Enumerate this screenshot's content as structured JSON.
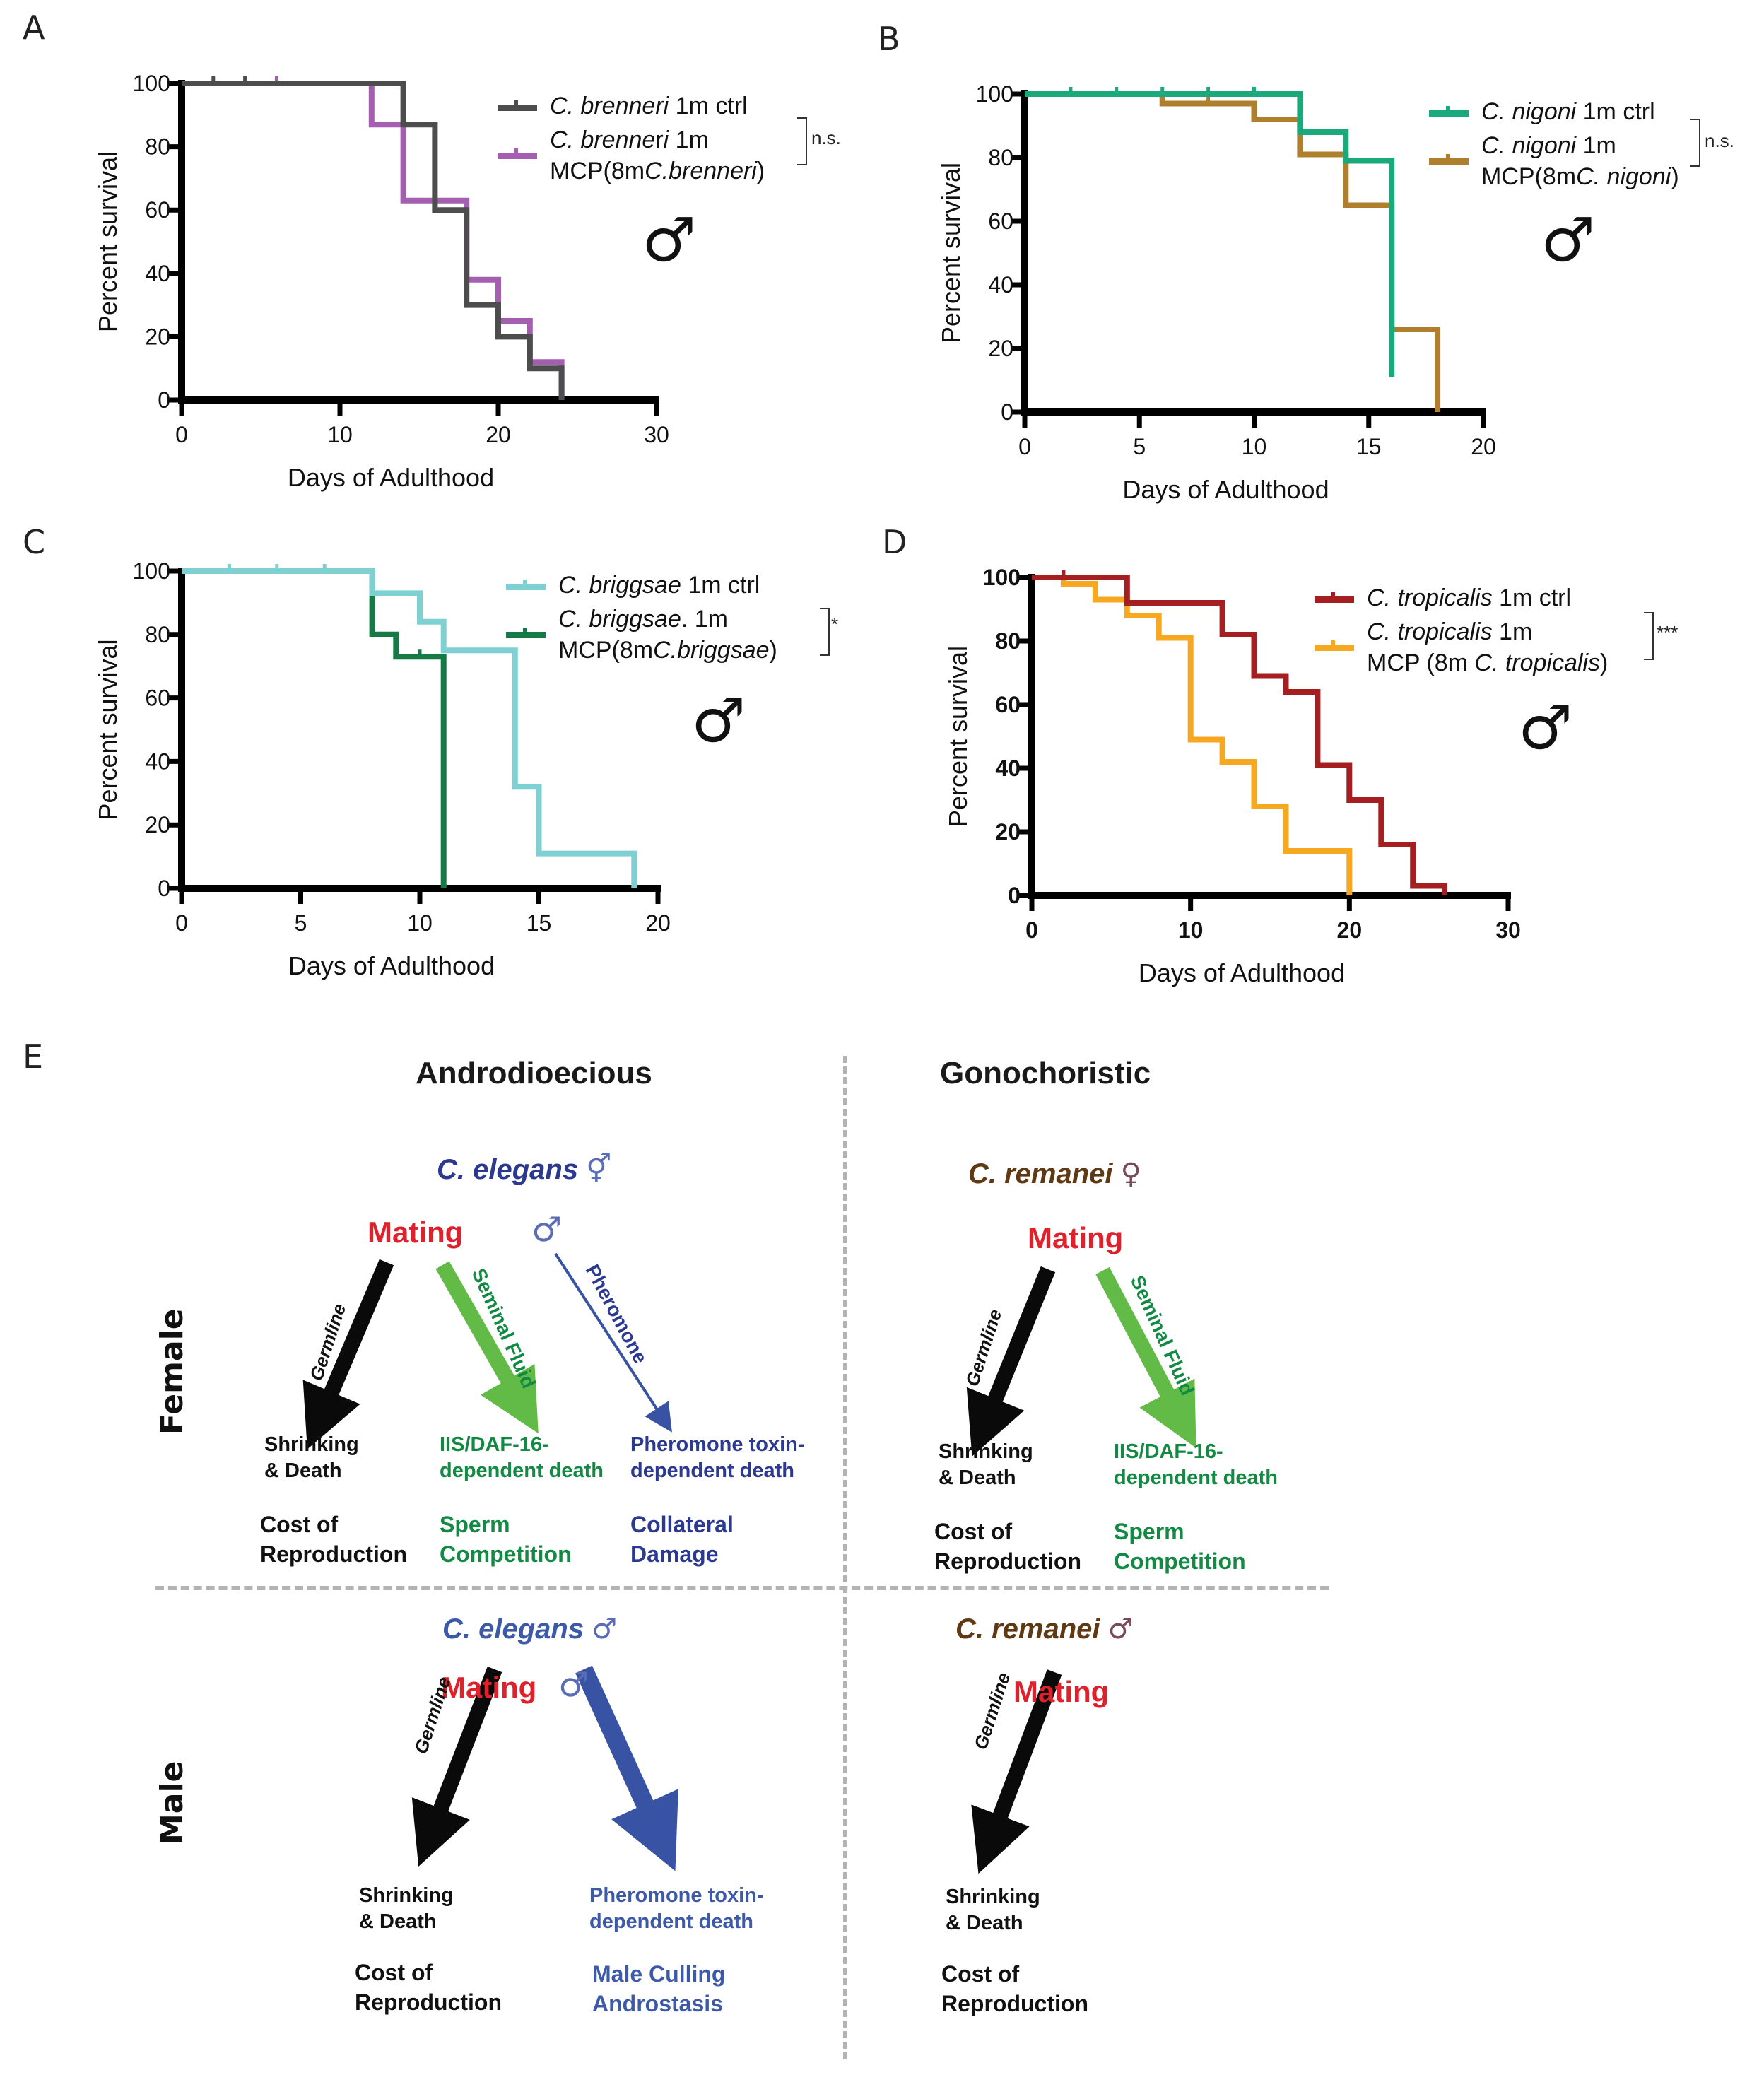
{
  "panels": {
    "A": {
      "letter": "A"
    },
    "B": {
      "letter": "B"
    },
    "C": {
      "letter": "C"
    },
    "D": {
      "letter": "D"
    },
    "E": {
      "letter": "E"
    }
  },
  "chart_data": [
    {
      "id": "A",
      "type": "line",
      "subtype": "kaplan-meier step",
      "xlabel": "Days of Adulthood",
      "ylabel": "Percent survival",
      "xlim": [
        0,
        30
      ],
      "ylim": [
        0,
        100
      ],
      "xticks": [
        0,
        10,
        20,
        30
      ],
      "yticks": [
        0,
        20,
        40,
        60,
        80,
        100
      ],
      "significance": "n.s.",
      "sex_symbol": "♂",
      "series": [
        {
          "name": "C. brenneri 1m ctrl",
          "legend_italic": "C. brenneri",
          "legend_rest": " 1m ctrl",
          "color": "#4d4d4d",
          "steps": [
            [
              0,
              100
            ],
            [
              14,
              100
            ],
            [
              14,
              87
            ],
            [
              16,
              87
            ],
            [
              16,
              60
            ],
            [
              18,
              60
            ],
            [
              18,
              30
            ],
            [
              20,
              30
            ],
            [
              20,
              20
            ],
            [
              22,
              20
            ],
            [
              22,
              10
            ],
            [
              24,
              10
            ],
            [
              24,
              0
            ]
          ],
          "censor_x": [
            2,
            4
          ]
        },
        {
          "name": "C. brenneri 1m MCP(8mC.brenneri)",
          "legend_line1": "C. brenneri 1m",
          "legend_line2": "MCP(8mC.brenneri)",
          "color": "#a45fb0",
          "steps": [
            [
              0,
              100
            ],
            [
              12,
              100
            ],
            [
              12,
              87
            ],
            [
              14,
              87
            ],
            [
              14,
              63
            ],
            [
              18,
              63
            ],
            [
              18,
              38
            ],
            [
              20,
              38
            ],
            [
              20,
              25
            ],
            [
              22,
              25
            ],
            [
              22,
              12
            ],
            [
              24,
              12
            ],
            [
              24,
              0
            ]
          ],
          "censor_x": [
            6
          ]
        }
      ]
    },
    {
      "id": "B",
      "type": "line",
      "subtype": "kaplan-meier step",
      "xlabel": "Days of Adulthood",
      "ylabel": "Percent survival",
      "xlim": [
        0,
        20
      ],
      "ylim": [
        0,
        100
      ],
      "xticks": [
        0,
        5,
        10,
        15,
        20
      ],
      "yticks": [
        0,
        20,
        40,
        60,
        80,
        100
      ],
      "significance": "n.s.",
      "sex_symbol": "♂",
      "series": [
        {
          "name": "C. nigoni 1m ctrl",
          "color": "#1aa97a",
          "steps": [
            [
              0,
              100
            ],
            [
              12,
              100
            ],
            [
              12,
              88
            ],
            [
              14,
              88
            ],
            [
              14,
              79
            ],
            [
              16,
              79
            ],
            [
              16,
              11
            ]
          ],
          "censor_x": [
            2,
            4,
            6,
            8,
            10
          ]
        },
        {
          "name": "C. nigoni 1m MCP(8mC. nigoni)",
          "color": "#b07f2e",
          "steps": [
            [
              0,
              100
            ],
            [
              6,
              100
            ],
            [
              6,
              97
            ],
            [
              10,
              97
            ],
            [
              10,
              92
            ],
            [
              12,
              92
            ],
            [
              12,
              81
            ],
            [
              14,
              81
            ],
            [
              14,
              65
            ],
            [
              16,
              65
            ],
            [
              16,
              26
            ],
            [
              18,
              26
            ],
            [
              18,
              0
            ]
          ],
          "censor_x": [
            8
          ]
        }
      ]
    },
    {
      "id": "C",
      "type": "line",
      "subtype": "kaplan-meier step",
      "xlabel": "Days of Adulthood",
      "ylabel": "Percent survival",
      "xlim": [
        0,
        20
      ],
      "ylim": [
        0,
        100
      ],
      "xticks": [
        0,
        5,
        10,
        15,
        20
      ],
      "yticks": [
        0,
        20,
        40,
        60,
        80,
        100
      ],
      "significance": "*",
      "sex_symbol": "♂",
      "series": [
        {
          "name": "C. briggsae 1m ctrl",
          "color": "#7fd0d3",
          "steps": [
            [
              0,
              100
            ],
            [
              8,
              100
            ],
            [
              8,
              93
            ],
            [
              10,
              93
            ],
            [
              10,
              84
            ],
            [
              11,
              84
            ],
            [
              11,
              75
            ],
            [
              14,
              75
            ],
            [
              14,
              32
            ],
            [
              15,
              32
            ],
            [
              15,
              11
            ],
            [
              19,
              11
            ],
            [
              19,
              0
            ]
          ],
          "censor_x": [
            2,
            4,
            6
          ]
        },
        {
          "name": "C. briggsae. 1m MCP(8mC.briggsae)",
          "color": "#157a45",
          "steps": [
            [
              0,
              100
            ],
            [
              8,
              100
            ],
            [
              8,
              80
            ],
            [
              9,
              80
            ],
            [
              9,
              73
            ],
            [
              11,
              73
            ],
            [
              11,
              0
            ]
          ],
          "censor_x": [
            10
          ]
        }
      ]
    },
    {
      "id": "D",
      "type": "line",
      "subtype": "kaplan-meier step",
      "xlabel": "Days of Adulthood",
      "ylabel": "Percent survival",
      "xlim": [
        0,
        30
      ],
      "ylim": [
        0,
        100
      ],
      "xticks": [
        0,
        10,
        20,
        30
      ],
      "yticks": [
        0,
        20,
        40,
        60,
        80,
        100
      ],
      "significance": "***",
      "sex_symbol": "♂",
      "series": [
        {
          "name": "C. tropicalis 1m ctrl",
          "color": "#a51e22",
          "steps": [
            [
              0,
              100
            ],
            [
              6,
              100
            ],
            [
              6,
              92
            ],
            [
              12,
              92
            ],
            [
              12,
              82
            ],
            [
              14,
              82
            ],
            [
              14,
              69
            ],
            [
              16,
              69
            ],
            [
              16,
              64
            ],
            [
              18,
              64
            ],
            [
              18,
              41
            ],
            [
              20,
              41
            ],
            [
              20,
              30
            ],
            [
              22,
              30
            ],
            [
              22,
              16
            ],
            [
              24,
              16
            ],
            [
              24,
              3
            ],
            [
              26,
              3
            ],
            [
              26,
              0
            ]
          ],
          "censor_x": [
            2
          ]
        },
        {
          "name": "C. tropicalis 1m MCP (8m C. tropicalis)",
          "color": "#f6a821",
          "steps": [
            [
              0,
              100
            ],
            [
              2,
              100
            ],
            [
              2,
              98
            ],
            [
              4,
              98
            ],
            [
              4,
              93
            ],
            [
              6,
              93
            ],
            [
              6,
              88
            ],
            [
              8,
              88
            ],
            [
              8,
              81
            ],
            [
              10,
              81
            ],
            [
              10,
              49
            ],
            [
              12,
              49
            ],
            [
              12,
              42
            ],
            [
              14,
              42
            ],
            [
              14,
              28
            ],
            [
              16,
              28
            ],
            [
              16,
              14
            ],
            [
              20,
              14
            ],
            [
              20,
              0
            ]
          ],
          "censor_x": []
        }
      ]
    }
  ],
  "legends": {
    "A": {
      "s1": {
        "it": "C. brenneri",
        "rest": " 1m ctrl"
      },
      "s2": {
        "l1it": "C. brenne",
        "l1mid": "r",
        "l1it2": "i",
        "l1rest": " 1m",
        "l2a": "MCP(8m",
        "l2it": "C.brenneri",
        "l2b": ")"
      }
    },
    "B": {
      "s1": {
        "it": "C. nigoni",
        "rest": " 1m ctrl"
      },
      "s2": {
        "l1it": "C. nigoni",
        "l1rest": " 1m",
        "l2a": "MCP(8m",
        "l2it": "C. nigoni",
        "l2b": ")"
      }
    },
    "C": {
      "s1": {
        "it": "C. briggsae",
        "rest": " 1m ctrl"
      },
      "s2": {
        "l1it": "C. briggsae",
        "l1rest": ". 1m",
        "l2a": "MCP(8m",
        "l2it": "C.briggsae",
        "l2b": ")"
      }
    },
    "D": {
      "s1": {
        "it": "C. tropicalis",
        "rest": " 1m ctrl"
      },
      "s2": {
        "l1it": "C. tropicalis",
        "l1rest": " 1m",
        "l2a": "MCP (8m ",
        "l2it": "C. tropicalis",
        "l2b": ")"
      }
    }
  },
  "diagram": {
    "col_headers": {
      "left": "Androdioecious",
      "right": "Gonochoristic"
    },
    "row_labels": {
      "top": "Female",
      "bottom": "Male"
    },
    "quadrants": {
      "andro_female": {
        "species": "C. elegans",
        "species_symbol": "⚥",
        "mating": "Mating",
        "male_symbol": "♂",
        "arrows": {
          "germline": "Germline",
          "seminal": "Seminal Fluid",
          "pheromone": "Pheromone"
        },
        "outcomes": {
          "germline": [
            "Shrinking",
            "& Death"
          ],
          "seminal": [
            "IIS/DAF-16-",
            "dependent death"
          ],
          "pheromone": [
            "Pheromone toxin-",
            "dependent death"
          ]
        },
        "categories": {
          "germline": [
            "Cost of",
            "Reproduction"
          ],
          "seminal": [
            "Sperm",
            "Competition"
          ],
          "pheromone": [
            "Collateral",
            "Damage"
          ]
        }
      },
      "gono_female": {
        "species": "C. remanei",
        "species_symbol": "♀",
        "mating": "Mating",
        "arrows": {
          "germline": "Germline",
          "seminal": "Seminal Fluid"
        },
        "outcomes": {
          "germline": [
            "Shrinking",
            "& Death"
          ],
          "seminal": [
            "IIS/DAF-16-",
            "dependent death"
          ]
        },
        "categories": {
          "germline": [
            "Cost of",
            "Reproduction"
          ],
          "seminal": [
            "Sperm",
            "Competition"
          ]
        }
      },
      "andro_male": {
        "species": "C. elegans",
        "species_symbol": "♂",
        "mating": "Mating",
        "male_symbol": "♂",
        "arrows": {
          "germline": "Germline"
        },
        "outcomes": {
          "germline": [
            "Shrinking",
            "& Death"
          ],
          "pheromone": [
            "Pheromone toxin-",
            "dependent death"
          ]
        },
        "categories": {
          "germline": [
            "Cost of",
            "Reproduction"
          ],
          "pheromone": [
            "Male Culling",
            "Androstasis"
          ]
        }
      },
      "gono_male": {
        "species": "C. remanei",
        "species_symbol": "♂",
        "mating": "Mating",
        "arrows": {
          "germline": "Germline"
        },
        "outcomes": {
          "germline": [
            "Shrinking",
            "& Death"
          ]
        },
        "categories": {
          "germline": [
            "Cost of",
            "Reproduction"
          ]
        }
      }
    },
    "colors": {
      "mating": "#e0202a",
      "elegans": "#2b3990",
      "elegans_male": "#3d5aa8",
      "remanei": "#603913",
      "remanei_symbol": "#7b4a5a",
      "seminal_arrow": "#62bb46",
      "seminal_text": "#138a43",
      "pheromone": "#3853a4",
      "germline": "#0a0a0a"
    }
  }
}
